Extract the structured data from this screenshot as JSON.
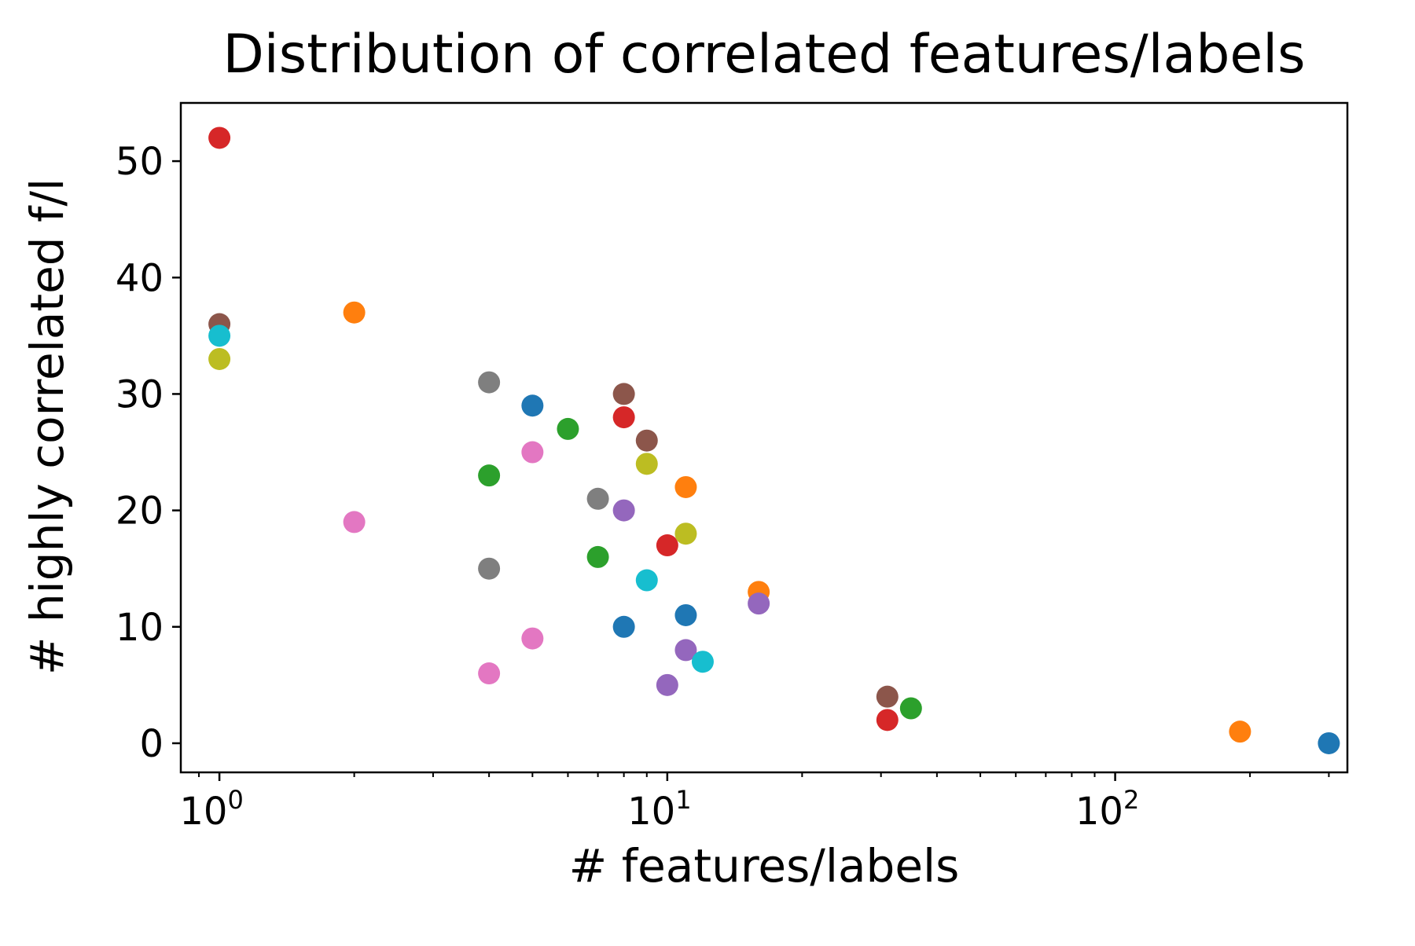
{
  "chart_data": {
    "type": "scatter",
    "title": "Distribution of correlated features/labels",
    "xlabel": "# features/labels",
    "ylabel": "# highly correlated f/l",
    "xscale": "log",
    "xlim": [
      0.82,
      330
    ],
    "ylim": [
      -2.5,
      55
    ],
    "grid": false,
    "legend": "none",
    "x_ticks": [
      {
        "value": 1,
        "base": "10",
        "exp": "0"
      },
      {
        "value": 10,
        "base": "10",
        "exp": "1"
      },
      {
        "value": 100,
        "base": "10",
        "exp": "2"
      }
    ],
    "y_ticks": [
      0,
      10,
      20,
      30,
      40,
      50
    ],
    "points": [
      {
        "x": 1,
        "y": 52,
        "color": "#d62728"
      },
      {
        "x": 1,
        "y": 36,
        "color": "#8c564b"
      },
      {
        "x": 1,
        "y": 35,
        "color": "#17becf"
      },
      {
        "x": 1,
        "y": 33,
        "color": "#bcbd22"
      },
      {
        "x": 2,
        "y": 37,
        "color": "#ff7f0e"
      },
      {
        "x": 2,
        "y": 19,
        "color": "#e377c2"
      },
      {
        "x": 4,
        "y": 31,
        "color": "#7f7f7f"
      },
      {
        "x": 4,
        "y": 23,
        "color": "#2ca02c"
      },
      {
        "x": 4,
        "y": 15,
        "color": "#7f7f7f"
      },
      {
        "x": 4,
        "y": 6,
        "color": "#e377c2"
      },
      {
        "x": 5,
        "y": 29,
        "color": "#1f77b4"
      },
      {
        "x": 5,
        "y": 25,
        "color": "#e377c2"
      },
      {
        "x": 5,
        "y": 9,
        "color": "#e377c2"
      },
      {
        "x": 6,
        "y": 27,
        "color": "#2ca02c"
      },
      {
        "x": 7,
        "y": 21,
        "color": "#7f7f7f"
      },
      {
        "x": 7,
        "y": 16,
        "color": "#2ca02c"
      },
      {
        "x": 8,
        "y": 30,
        "color": "#8c564b"
      },
      {
        "x": 8,
        "y": 28,
        "color": "#d62728"
      },
      {
        "x": 8,
        "y": 20,
        "color": "#9467bd"
      },
      {
        "x": 8,
        "y": 10,
        "color": "#1f77b4"
      },
      {
        "x": 9,
        "y": 26,
        "color": "#8c564b"
      },
      {
        "x": 9,
        "y": 24,
        "color": "#bcbd22"
      },
      {
        "x": 9,
        "y": 14,
        "color": "#17becf"
      },
      {
        "x": 10,
        "y": 17,
        "color": "#d62728"
      },
      {
        "x": 10,
        "y": 5,
        "color": "#9467bd"
      },
      {
        "x": 11,
        "y": 22,
        "color": "#ff7f0e"
      },
      {
        "x": 11,
        "y": 18,
        "color": "#bcbd22"
      },
      {
        "x": 11,
        "y": 11,
        "color": "#1f77b4"
      },
      {
        "x": 11,
        "y": 8,
        "color": "#9467bd"
      },
      {
        "x": 12,
        "y": 7,
        "color": "#17becf"
      },
      {
        "x": 16,
        "y": 13,
        "color": "#ff7f0e"
      },
      {
        "x": 16,
        "y": 12,
        "color": "#9467bd"
      },
      {
        "x": 31,
        "y": 4,
        "color": "#8c564b"
      },
      {
        "x": 31,
        "y": 2,
        "color": "#d62728"
      },
      {
        "x": 35,
        "y": 3,
        "color": "#2ca02c"
      },
      {
        "x": 190,
        "y": 1,
        "color": "#ff7f0e"
      },
      {
        "x": 300,
        "y": 0,
        "color": "#1f77b4"
      }
    ]
  }
}
